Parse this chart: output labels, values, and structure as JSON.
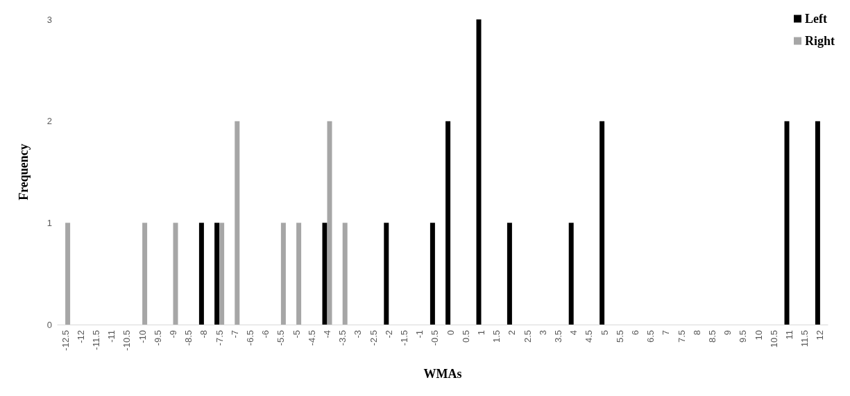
{
  "chart_data": {
    "type": "bar",
    "xlabel": "WMAs",
    "ylabel": "Frequency",
    "categories": [
      "-12.5",
      "-12",
      "-11.5",
      "-11",
      "-10.5",
      "-10",
      "-9.5",
      "-9",
      "-8.5",
      "-8",
      "-7.5",
      "-7",
      "-6.5",
      "-6",
      "-5.5",
      "-5",
      "-4.5",
      "-4",
      "-3.5",
      "-3",
      "-2.5",
      "-2",
      "-1.5",
      "-1",
      "-0.5",
      "0",
      "0.5",
      "1",
      "1.5",
      "2",
      "2.5",
      "3",
      "3.5",
      "4",
      "4.5",
      "5",
      "5.5",
      "6",
      "6.5",
      "7",
      "7.5",
      "8",
      "8.5",
      "9",
      "9.5",
      "10",
      "10.5",
      "11",
      "11.5",
      "12"
    ],
    "series": [
      {
        "name": "Left",
        "color": "#000000",
        "values": [
          0,
          0,
          0,
          0,
          0,
          0,
          0,
          0,
          0,
          1,
          1,
          0,
          0,
          0,
          0,
          0,
          0,
          1,
          0,
          0,
          0,
          1,
          0,
          0,
          1,
          2,
          0,
          3,
          0,
          1,
          0,
          0,
          0,
          1,
          0,
          2,
          0,
          0,
          0,
          0,
          0,
          0,
          0,
          0,
          0,
          0,
          0,
          2,
          0,
          2
        ]
      },
      {
        "name": "Right",
        "color": "#a6a6a6",
        "values": [
          1,
          0,
          0,
          0,
          0,
          1,
          0,
          1,
          0,
          0,
          1,
          2,
          0,
          0,
          1,
          1,
          0,
          2,
          1,
          0,
          0,
          0,
          0,
          0,
          0,
          0,
          0,
          0,
          0,
          0,
          0,
          0,
          0,
          0,
          0,
          0,
          0,
          0,
          0,
          0,
          0,
          0,
          0,
          0,
          0,
          0,
          0,
          0,
          0,
          0
        ]
      }
    ],
    "ylim": [
      0,
      3
    ],
    "yticks": [
      0,
      1,
      2,
      3
    ],
    "grid": false,
    "legend": "top right"
  }
}
